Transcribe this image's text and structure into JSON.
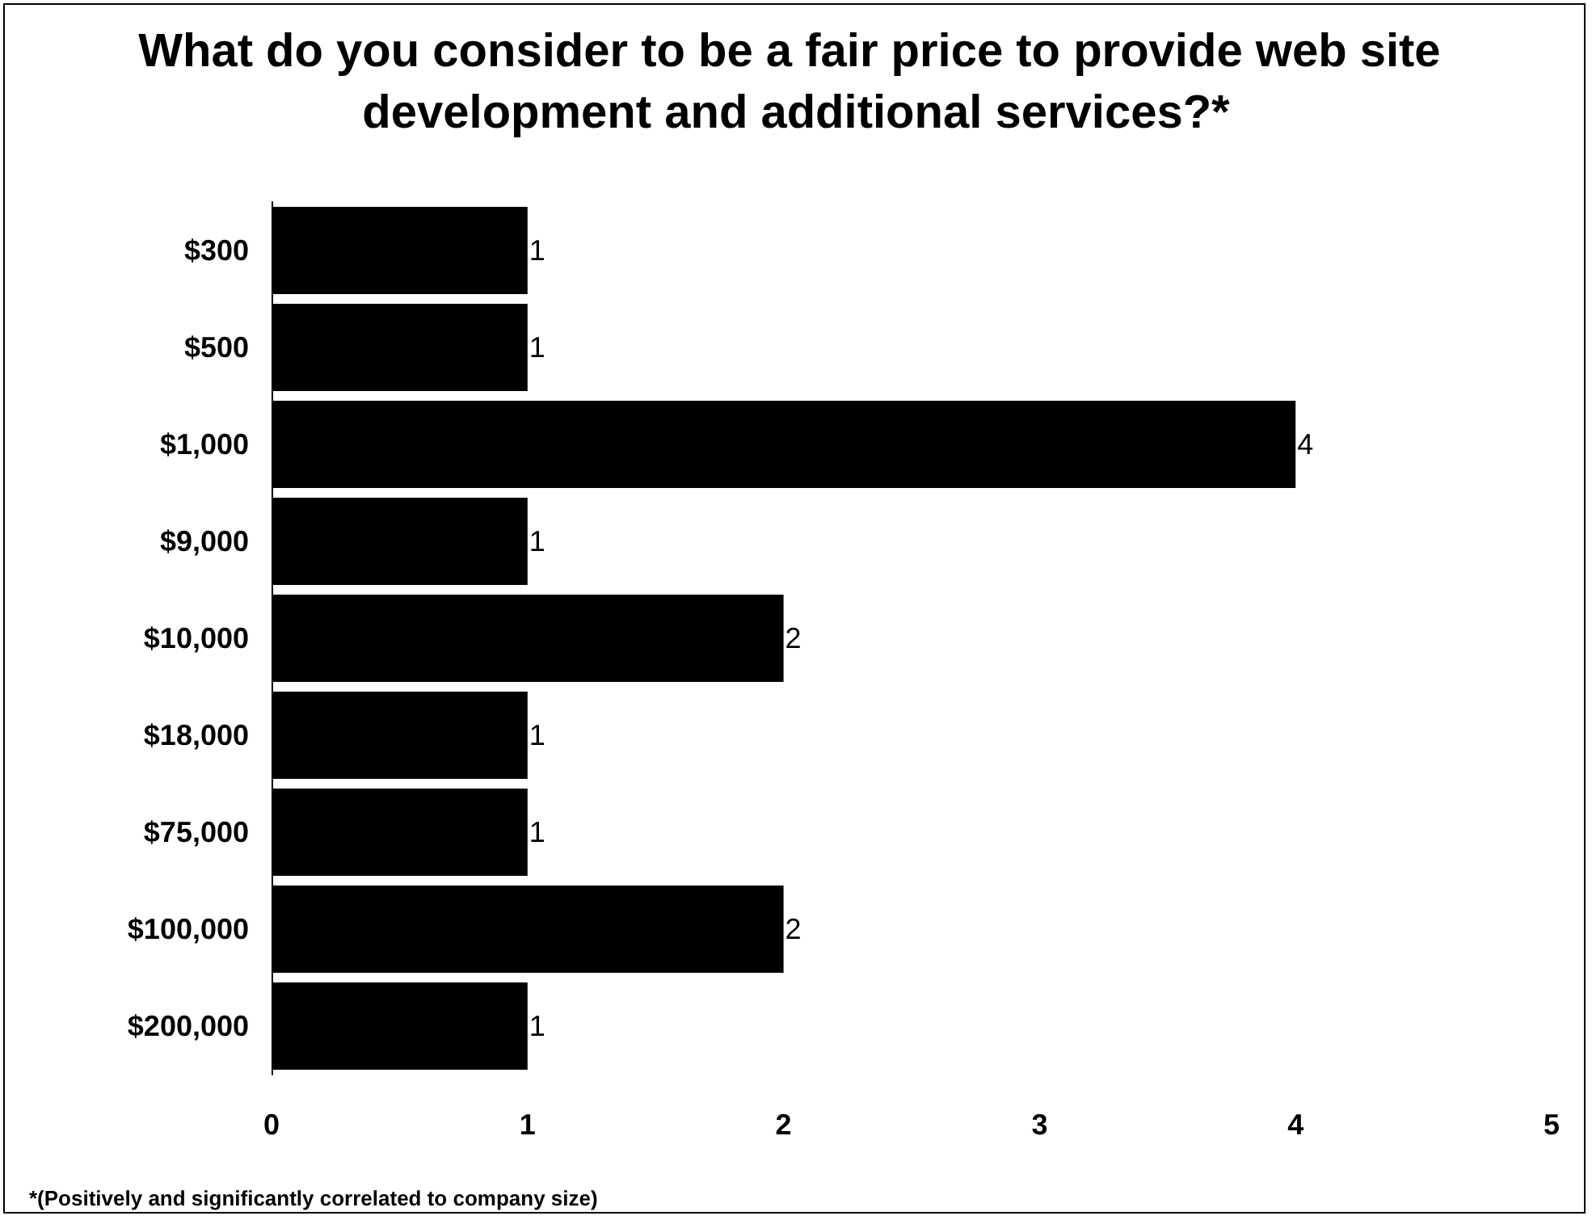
{
  "chart_data": {
    "type": "bar",
    "orientation": "horizontal",
    "title": "What do you consider to be a fair price to provide web site development and additional services?*",
    "categories": [
      "$300",
      "$500",
      "$1,000",
      "$9,000",
      "$10,000",
      "$18,000",
      "$75,000",
      "$100,000",
      "$200,000"
    ],
    "values": [
      1,
      1,
      4,
      1,
      2,
      1,
      1,
      2,
      1
    ],
    "color": "#000000",
    "xlim": [
      0,
      5
    ],
    "xticks": [
      0,
      1,
      2,
      3,
      4,
      5
    ],
    "grid": false,
    "data_labels": true,
    "annotations": [
      "*(Positively and significantly correlated to company size)"
    ]
  }
}
